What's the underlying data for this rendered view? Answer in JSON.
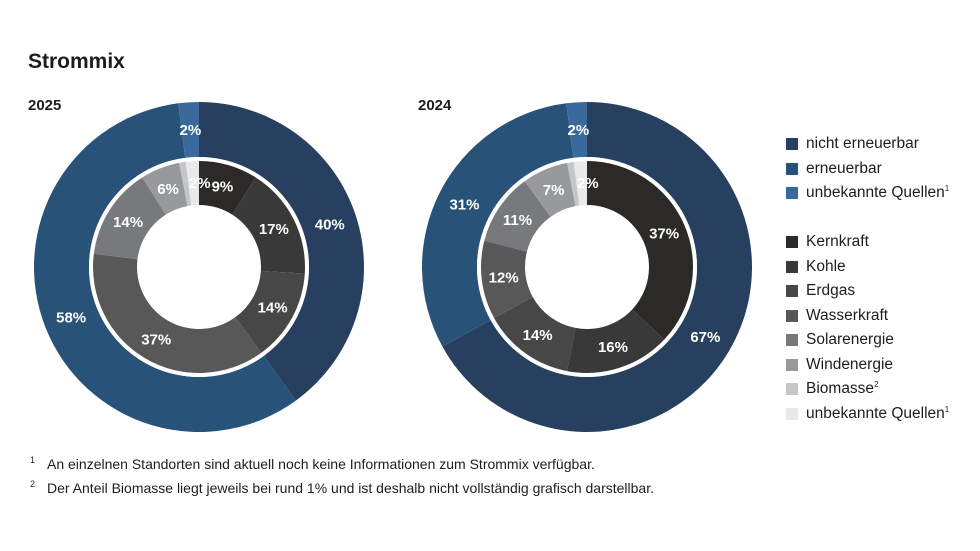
{
  "title": "Strommix",
  "legend_groups": [
    [
      {
        "label": "nicht erneuerbar",
        "color": "#27405f",
        "sup": ""
      },
      {
        "label": "erneuerbar",
        "color": "#285278",
        "sup": ""
      },
      {
        "label": "unbekannte Quellen",
        "color": "#3a6a9c",
        "sup": "1"
      }
    ],
    [
      {
        "label": "Kernkraft",
        "color": "#2b2a28",
        "sup": ""
      },
      {
        "label": "Kohle",
        "color": "#393939",
        "sup": ""
      },
      {
        "label": "Erdgas",
        "color": "#474747",
        "sup": ""
      },
      {
        "label": "Wasserkraft",
        "color": "#585858",
        "sup": ""
      },
      {
        "label": "Solarenergie",
        "color": "#777a7d",
        "sup": ""
      },
      {
        "label": "Windenergie",
        "color": "#979a9d",
        "sup": ""
      },
      {
        "label": "Biomasse",
        "color": "#c4c6c9",
        "sup": "2"
      },
      {
        "label": "unbekannte Quellen",
        "color": "#e9e9eb",
        "sup": "1"
      }
    ]
  ],
  "footnotes": [
    {
      "mark": "1",
      "text": "An einzelnen Standorten sind aktuell noch keine Informationen zum Strommix verfügbar."
    },
    {
      "mark": "2",
      "text": "Der Anteil Biomasse liegt jeweils bei rund 1% und ist deshalb nicht vollständig grafisch darstellbar."
    }
  ],
  "chart_data": [
    {
      "type": "pie",
      "title": "2025",
      "outer_ring": {
        "categories": [
          "nicht erneuerbar",
          "erneuerbar",
          "unbekannte Quellen"
        ],
        "values": [
          40,
          58,
          2
        ],
        "labels": [
          "40%",
          "58%",
          "2%"
        ]
      },
      "inner_ring": {
        "categories": [
          "Kernkraft",
          "Kohle",
          "Erdgas",
          "Wasserkraft",
          "Solarenergie",
          "Windenergie",
          "Biomasse",
          "unbekannte Quellen"
        ],
        "values": [
          9,
          17,
          14,
          37,
          14,
          6,
          1,
          2
        ],
        "labels": [
          "9%",
          "17%",
          "14%",
          "37%",
          "14%",
          "6%",
          "",
          "2%"
        ]
      }
    },
    {
      "type": "pie",
      "title": "2024",
      "outer_ring": {
        "categories": [
          "nicht erneuerbar",
          "erneuerbar",
          "unbekannte Quellen"
        ],
        "values": [
          67,
          31,
          2
        ],
        "labels": [
          "67%",
          "31%",
          "2%"
        ]
      },
      "inner_ring": {
        "categories": [
          "Kernkraft",
          "Kohle",
          "Erdgas",
          "Wasserkraft",
          "Solarenergie",
          "Windenergie",
          "Biomasse",
          "unbekannte Quellen"
        ],
        "values": [
          37,
          16,
          14,
          12,
          11,
          7,
          1,
          2
        ],
        "labels": [
          "37%",
          "16%",
          "14%",
          "12%",
          "11%",
          "7%",
          "",
          "2%"
        ]
      }
    }
  ]
}
